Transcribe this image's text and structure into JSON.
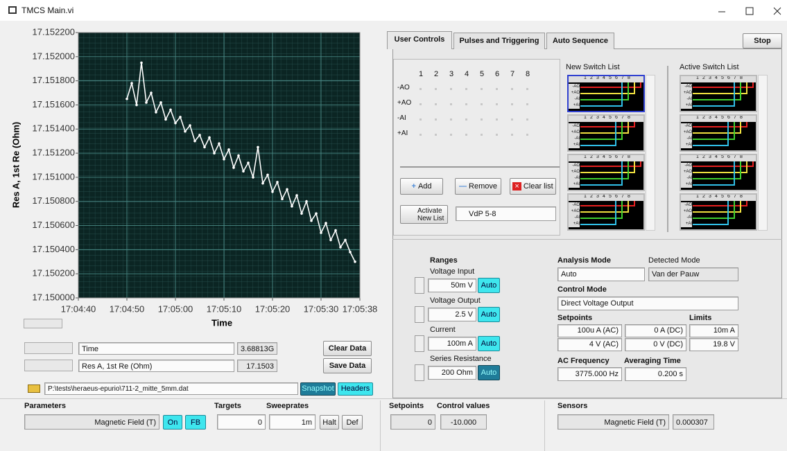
{
  "window": {
    "title": "TMCS Main.vi"
  },
  "chart_data": {
    "type": "line",
    "x_label": "Time",
    "y_label": "Res A, 1st Re (Ohm)",
    "color": "#ffffff",
    "grid": true,
    "x": [
      61490,
      61491,
      61492,
      61493,
      61494,
      61495,
      61496,
      61497,
      61498,
      61499,
      61500,
      61501,
      61502,
      61503,
      61504,
      61505,
      61506,
      61507,
      61508,
      61509,
      61510,
      61511,
      61512,
      61513,
      61514,
      61515,
      61516,
      61517,
      61518,
      61519,
      61520,
      61521,
      61522,
      61523,
      61524,
      61525,
      61526,
      61527,
      61528,
      61529,
      61530,
      61531,
      61532,
      61533,
      61534,
      61535,
      61536,
      61537
    ],
    "values": [
      17.15165,
      17.15178,
      17.1516,
      17.15195,
      17.15162,
      17.1517,
      17.15154,
      17.15162,
      17.15148,
      17.15156,
      17.15145,
      17.1515,
      17.15138,
      17.15143,
      17.1513,
      17.15135,
      17.15125,
      17.15133,
      17.1512,
      17.15128,
      17.15115,
      17.15123,
      17.15108,
      17.15118,
      17.15105,
      17.15112,
      17.151,
      17.15125,
      17.15095,
      17.15102,
      17.15088,
      17.15096,
      17.15082,
      17.1509,
      17.15076,
      17.15085,
      17.1507,
      17.1508,
      17.15064,
      17.1507,
      17.15054,
      17.15062,
      17.15048,
      17.15056,
      17.15042,
      17.15048,
      17.15038,
      17.1503
    ],
    "xlim": [
      61480,
      61538
    ],
    "xticks": [
      {
        "value": 61480,
        "label": "17:04:40"
      },
      {
        "value": 61490,
        "label": "17:04:50"
      },
      {
        "value": 61500,
        "label": "17:05:00"
      },
      {
        "value": 61510,
        "label": "17:05:10"
      },
      {
        "value": 61520,
        "label": "17:05:20"
      },
      {
        "value": 61530,
        "label": "17:05:30"
      },
      {
        "value": 61538,
        "label": "17:05:38"
      }
    ],
    "ylim": [
      17.15,
      17.1522
    ],
    "yticks": [
      {
        "value": 17.15,
        "label": "17.150000"
      },
      {
        "value": 17.1502,
        "label": "17.150200"
      },
      {
        "value": 17.1504,
        "label": "17.150400"
      },
      {
        "value": 17.1506,
        "label": "17.150600"
      },
      {
        "value": 17.1508,
        "label": "17.150800"
      },
      {
        "value": 17.151,
        "label": "17.151000"
      },
      {
        "value": 17.1512,
        "label": "17.151200"
      },
      {
        "value": 17.1514,
        "label": "17.151400"
      },
      {
        "value": 17.1516,
        "label": "17.151600"
      },
      {
        "value": 17.1518,
        "label": "17.151800"
      },
      {
        "value": 17.152,
        "label": "17.152000"
      },
      {
        "value": 17.1522,
        "label": "17.152200"
      }
    ]
  },
  "cursors": [
    {
      "name": "Time",
      "value": "3.68813G"
    },
    {
      "name": "Res A, 1st Re (Ohm)",
      "value": "17.1503"
    }
  ],
  "buttons": {
    "clear": "Clear Data",
    "save": "Save Data",
    "snapshot": "Snapshot",
    "headers": "Headers"
  },
  "file_path": "P:\\tests\\heraeus-epurio\\711-2_mitte_5mm.dat",
  "bottom": {
    "parameters": "Parameters",
    "field": "Magnetic Field (T)",
    "on": "On",
    "fb": "FB",
    "targets": "Targets",
    "target_value": "0",
    "sweeprates": "Sweeprates",
    "sweeprate_value": "1m",
    "halt": "Halt",
    "def": "Def",
    "setpoints": "Setpoints",
    "setpoint_value": "0",
    "control_values": "Control values",
    "control_value": "-10.000",
    "sensors": "Sensors",
    "sensor_name": "Magnetic Field (T)",
    "sensor_value": "0.000307"
  },
  "tabs": [
    "User Controls",
    "Pulses and Triggering",
    "Auto Sequence"
  ],
  "stop": "Stop",
  "matrix": {
    "columns": [
      "1",
      "2",
      "3",
      "4",
      "5",
      "6",
      "7",
      "8"
    ],
    "rows": [
      "-AO",
      "+AO",
      "-AI",
      "+AI"
    ]
  },
  "list_buttons": {
    "add": "Add",
    "remove": "Remove",
    "clear": "Clear list",
    "activate": "Activate New List",
    "preset": "VdP 5-8"
  },
  "new_list": "New Switch List",
  "active_list": "Active Switch List",
  "ranges": {
    "title": "Ranges",
    "auto": "Auto",
    "items": [
      {
        "label": "Voltage Input",
        "value": "50m V"
      },
      {
        "label": "Voltage Output",
        "value": "2.5 V"
      },
      {
        "label": "Current",
        "value": "100m A"
      },
      {
        "label": "Series Resistance",
        "value": "200 Ohm"
      }
    ]
  },
  "analysis": {
    "label": "Analysis Mode",
    "value": "Auto",
    "detected_label": "Detected Mode",
    "detected_value": "Van der Pauw",
    "control_label": "Control Mode",
    "control_value": "Direct Voltage Output",
    "setpoints_label": "Setpoints",
    "limits_label": "Limits",
    "rows": [
      [
        "100u A (AC)",
        "0 A (DC)",
        "10m A"
      ],
      [
        "4 V (AC)",
        "0 V (DC)",
        "19.8 V"
      ]
    ],
    "ac_label": "AC Frequency",
    "ac_value": "3775.000 Hz",
    "avg_label": "Averaging Time",
    "avg_value": "0.200 s"
  }
}
